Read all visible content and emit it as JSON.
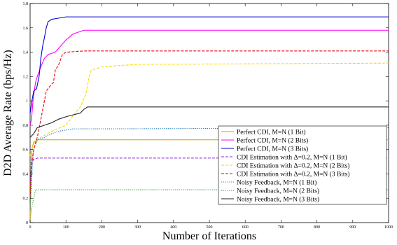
{
  "chart_data": {
    "type": "line",
    "xlabel": "Number of Iterations",
    "ylabel": "D2D Average Rate (bps/Hz)",
    "xlim": [
      0,
      1000
    ],
    "ylim": [
      0,
      1.8
    ],
    "x_ticks": [
      0,
      100,
      200,
      300,
      400,
      500,
      600,
      700,
      800,
      900,
      1000
    ],
    "y_ticks": [
      0,
      0.2,
      0.4,
      0.6,
      0.8,
      1,
      1.2,
      1.4,
      1.6,
      1.8
    ],
    "grid": false,
    "legend_position": "bottom-right",
    "series": [
      {
        "name": "Perfect CDI, M=N (1 Bit)",
        "color": "#c8a000",
        "dash": "solid",
        "points": [
          [
            0,
            0.02
          ],
          [
            3,
            0.5
          ],
          [
            6,
            0.62
          ],
          [
            10,
            0.66
          ],
          [
            20,
            0.68
          ],
          [
            1000,
            0.68
          ]
        ]
      },
      {
        "name": "Perfect CDI, M=N (2 Bits)",
        "color": "#ff00ff",
        "dash": "solid",
        "points": [
          [
            0,
            0.8
          ],
          [
            4,
            0.85
          ],
          [
            8,
            1.0
          ],
          [
            15,
            1.15
          ],
          [
            20,
            1.2
          ],
          [
            30,
            1.28
          ],
          [
            40,
            1.35
          ],
          [
            50,
            1.38
          ],
          [
            70,
            1.4
          ],
          [
            85,
            1.45
          ],
          [
            100,
            1.5
          ],
          [
            120,
            1.55
          ],
          [
            150,
            1.58
          ],
          [
            1000,
            1.58
          ]
        ]
      },
      {
        "name": "Perfect CDI, M=N (3 Bits)",
        "color": "#0000cc",
        "dash": "solid",
        "points": [
          [
            0,
            0.9
          ],
          [
            5,
            1.0
          ],
          [
            10,
            1.08
          ],
          [
            18,
            1.1
          ],
          [
            25,
            1.2
          ],
          [
            30,
            1.35
          ],
          [
            35,
            1.45
          ],
          [
            40,
            1.52
          ],
          [
            45,
            1.6
          ],
          [
            50,
            1.65
          ],
          [
            60,
            1.67
          ],
          [
            80,
            1.68
          ],
          [
            100,
            1.69
          ],
          [
            1000,
            1.69
          ]
        ]
      },
      {
        "name": "CDI Estimation with Δ=0.2, M=N (1 Bit)",
        "color": "#8a2be2",
        "dash": "dashed",
        "points": [
          [
            0,
            0.3
          ],
          [
            3,
            0.45
          ],
          [
            6,
            0.5
          ],
          [
            10,
            0.52
          ],
          [
            20,
            0.53
          ],
          [
            1000,
            0.53
          ]
        ]
      },
      {
        "name": "CDI Estimation with Δ=0.2, M=N (2 Bits)",
        "color": "#ffd700",
        "dash": "dashed",
        "points": [
          [
            0,
            0.55
          ],
          [
            10,
            0.65
          ],
          [
            30,
            0.7
          ],
          [
            60,
            0.75
          ],
          [
            100,
            0.8
          ],
          [
            120,
            0.88
          ],
          [
            140,
            0.95
          ],
          [
            155,
            1.05
          ],
          [
            165,
            1.2
          ],
          [
            170,
            1.25
          ],
          [
            200,
            1.28
          ],
          [
            300,
            1.3
          ],
          [
            1000,
            1.31
          ]
        ]
      },
      {
        "name": "CDI Estimation with Δ=0.2, M=N (3 Bits)",
        "color": "#e8000b",
        "dash": "dashed",
        "points": [
          [
            0,
            0.2
          ],
          [
            5,
            0.5
          ],
          [
            10,
            0.6
          ],
          [
            20,
            0.7
          ],
          [
            40,
            1.0
          ],
          [
            45,
            1.08
          ],
          [
            55,
            1.12
          ],
          [
            65,
            1.15
          ],
          [
            70,
            1.25
          ],
          [
            80,
            1.3
          ],
          [
            90,
            1.38
          ],
          [
            100,
            1.4
          ],
          [
            150,
            1.41
          ],
          [
            1000,
            1.41
          ]
        ]
      },
      {
        "name": "Noisy Feedback, M=N (1 Bit)",
        "color": "#2ca02c",
        "dash": "dotted",
        "points": [
          [
            0,
            0.02
          ],
          [
            3,
            0.08
          ],
          [
            6,
            0.15
          ],
          [
            10,
            0.2
          ],
          [
            15,
            0.27
          ],
          [
            20,
            0.27
          ],
          [
            1000,
            0.27
          ]
        ]
      },
      {
        "name": "Noisy Feedback, M=N (2 Bits)",
        "color": "#1f77b4",
        "dash": "dotted",
        "points": [
          [
            0,
            0.1
          ],
          [
            5,
            0.4
          ],
          [
            10,
            0.6
          ],
          [
            20,
            0.68
          ],
          [
            40,
            0.7
          ],
          [
            60,
            0.73
          ],
          [
            80,
            0.75
          ],
          [
            100,
            0.76
          ],
          [
            120,
            0.77
          ],
          [
            200,
            0.77
          ],
          [
            1000,
            0.78
          ]
        ]
      },
      {
        "name": "Noisy Feedback, M=N (3 Bits)",
        "color": "#222222",
        "dash": "solid",
        "points": [
          [
            0,
            0.7
          ],
          [
            10,
            0.73
          ],
          [
            20,
            0.78
          ],
          [
            40,
            0.8
          ],
          [
            60,
            0.82
          ],
          [
            80,
            0.85
          ],
          [
            100,
            0.87
          ],
          [
            140,
            0.9
          ],
          [
            150,
            0.93
          ],
          [
            160,
            0.95
          ],
          [
            1000,
            0.95
          ]
        ]
      }
    ]
  }
}
